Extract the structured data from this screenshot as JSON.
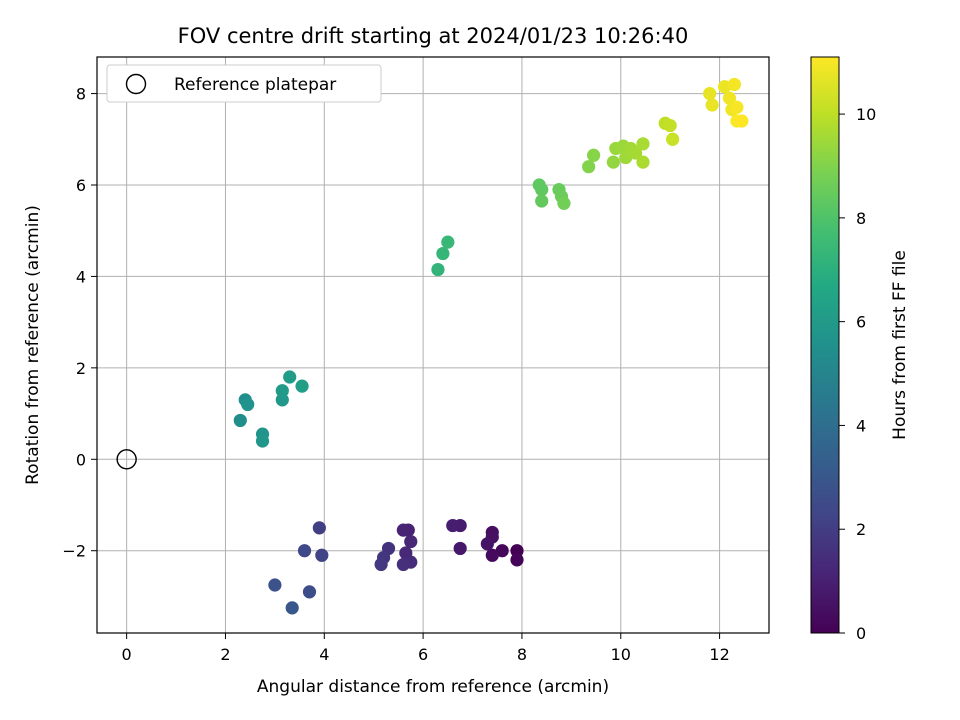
{
  "chart_data": {
    "type": "scatter",
    "title": "FOV centre drift starting at 2024/01/23 10:26:40",
    "xlabel": "Angular distance from reference (arcmin)",
    "ylabel": "Rotation from reference (arcmin)",
    "xlim": [
      -0.6,
      13.0
    ],
    "ylim": [
      -3.8,
      8.8
    ],
    "xticks": [
      0,
      2,
      4,
      6,
      8,
      10,
      12
    ],
    "yticks": [
      -2,
      0,
      2,
      4,
      6,
      8
    ],
    "grid": true,
    "legend": {
      "position": "top-left",
      "entries": [
        "Reference platepar"
      ]
    },
    "colorbar": {
      "label": "Hours from first FF file",
      "colormap": "viridis",
      "range": [
        0,
        11.1
      ],
      "ticks": [
        0,
        2,
        4,
        6,
        8,
        10
      ]
    },
    "reference_point": {
      "x": 0,
      "y": 0
    },
    "series": [
      {
        "points": [
          {
            "x": 7.9,
            "y": -2.0,
            "c": 0.0
          },
          {
            "x": 7.9,
            "y": -2.2,
            "c": 0.1
          },
          {
            "x": 7.6,
            "y": -2.0,
            "c": 0.2
          },
          {
            "x": 7.4,
            "y": -2.1,
            "c": 0.3
          },
          {
            "x": 7.4,
            "y": -1.6,
            "c": 0.4
          },
          {
            "x": 7.4,
            "y": -1.7,
            "c": 0.5
          },
          {
            "x": 7.3,
            "y": -1.85,
            "c": 0.6
          },
          {
            "x": 6.75,
            "y": -1.95,
            "c": 0.7
          },
          {
            "x": 6.75,
            "y": -1.45,
            "c": 0.8
          },
          {
            "x": 6.6,
            "y": -1.45,
            "c": 0.9
          },
          {
            "x": 5.7,
            "y": -1.55,
            "c": 1.0
          },
          {
            "x": 5.6,
            "y": -1.55,
            "c": 1.1
          },
          {
            "x": 5.75,
            "y": -1.8,
            "c": 1.2
          },
          {
            "x": 5.65,
            "y": -2.05,
            "c": 1.3
          },
          {
            "x": 5.75,
            "y": -2.25,
            "c": 1.4
          },
          {
            "x": 5.6,
            "y": -2.3,
            "c": 1.5
          },
          {
            "x": 5.3,
            "y": -1.95,
            "c": 1.6
          },
          {
            "x": 5.2,
            "y": -2.15,
            "c": 1.7
          },
          {
            "x": 5.15,
            "y": -2.3,
            "c": 1.8
          },
          {
            "x": 3.9,
            "y": -1.5,
            "c": 2.0
          },
          {
            "x": 3.95,
            "y": -2.1,
            "c": 2.2
          },
          {
            "x": 3.6,
            "y": -2.0,
            "c": 2.4
          },
          {
            "x": 3.7,
            "y": -2.9,
            "c": 2.6
          },
          {
            "x": 3.0,
            "y": -2.75,
            "c": 2.8
          },
          {
            "x": 3.35,
            "y": -3.25,
            "c": 3.0
          },
          {
            "x": 2.3,
            "y": 0.85,
            "c": 5.4
          },
          {
            "x": 2.4,
            "y": 1.3,
            "c": 5.5
          },
          {
            "x": 2.45,
            "y": 1.2,
            "c": 5.6
          },
          {
            "x": 2.75,
            "y": 0.55,
            "c": 5.7
          },
          {
            "x": 2.75,
            "y": 0.4,
            "c": 5.8
          },
          {
            "x": 3.15,
            "y": 1.3,
            "c": 5.9
          },
          {
            "x": 3.15,
            "y": 1.5,
            "c": 6.0
          },
          {
            "x": 3.3,
            "y": 1.8,
            "c": 6.1
          },
          {
            "x": 3.55,
            "y": 1.6,
            "c": 6.2
          },
          {
            "x": 6.3,
            "y": 4.15,
            "c": 7.2
          },
          {
            "x": 6.4,
            "y": 4.5,
            "c": 7.3
          },
          {
            "x": 6.5,
            "y": 4.75,
            "c": 7.4
          },
          {
            "x": 8.35,
            "y": 6.0,
            "c": 8.3
          },
          {
            "x": 8.4,
            "y": 5.9,
            "c": 8.35
          },
          {
            "x": 8.4,
            "y": 5.65,
            "c": 8.4
          },
          {
            "x": 8.75,
            "y": 5.9,
            "c": 8.5
          },
          {
            "x": 8.8,
            "y": 5.75,
            "c": 8.6
          },
          {
            "x": 8.85,
            "y": 5.6,
            "c": 8.7
          },
          {
            "x": 9.35,
            "y": 6.4,
            "c": 9.0
          },
          {
            "x": 9.45,
            "y": 6.65,
            "c": 9.1
          },
          {
            "x": 9.85,
            "y": 6.5,
            "c": 9.3
          },
          {
            "x": 9.9,
            "y": 6.8,
            "c": 9.4
          },
          {
            "x": 10.05,
            "y": 6.85,
            "c": 9.45
          },
          {
            "x": 10.1,
            "y": 6.6,
            "c": 9.5
          },
          {
            "x": 10.2,
            "y": 6.8,
            "c": 9.55
          },
          {
            "x": 10.3,
            "y": 6.7,
            "c": 9.6
          },
          {
            "x": 10.45,
            "y": 6.9,
            "c": 9.65
          },
          {
            "x": 10.45,
            "y": 6.5,
            "c": 9.7
          },
          {
            "x": 10.9,
            "y": 7.35,
            "c": 10.0
          },
          {
            "x": 11.0,
            "y": 7.3,
            "c": 10.1
          },
          {
            "x": 11.05,
            "y": 7.0,
            "c": 10.2
          },
          {
            "x": 11.8,
            "y": 8.0,
            "c": 10.7
          },
          {
            "x": 11.85,
            "y": 7.75,
            "c": 10.75
          },
          {
            "x": 12.1,
            "y": 8.15,
            "c": 10.8
          },
          {
            "x": 12.2,
            "y": 7.9,
            "c": 10.85
          },
          {
            "x": 12.25,
            "y": 7.65,
            "c": 10.9
          },
          {
            "x": 12.3,
            "y": 8.2,
            "c": 10.95
          },
          {
            "x": 12.35,
            "y": 7.7,
            "c": 11.0
          },
          {
            "x": 12.35,
            "y": 7.4,
            "c": 11.05
          },
          {
            "x": 12.45,
            "y": 7.4,
            "c": 11.1
          }
        ]
      }
    ]
  }
}
